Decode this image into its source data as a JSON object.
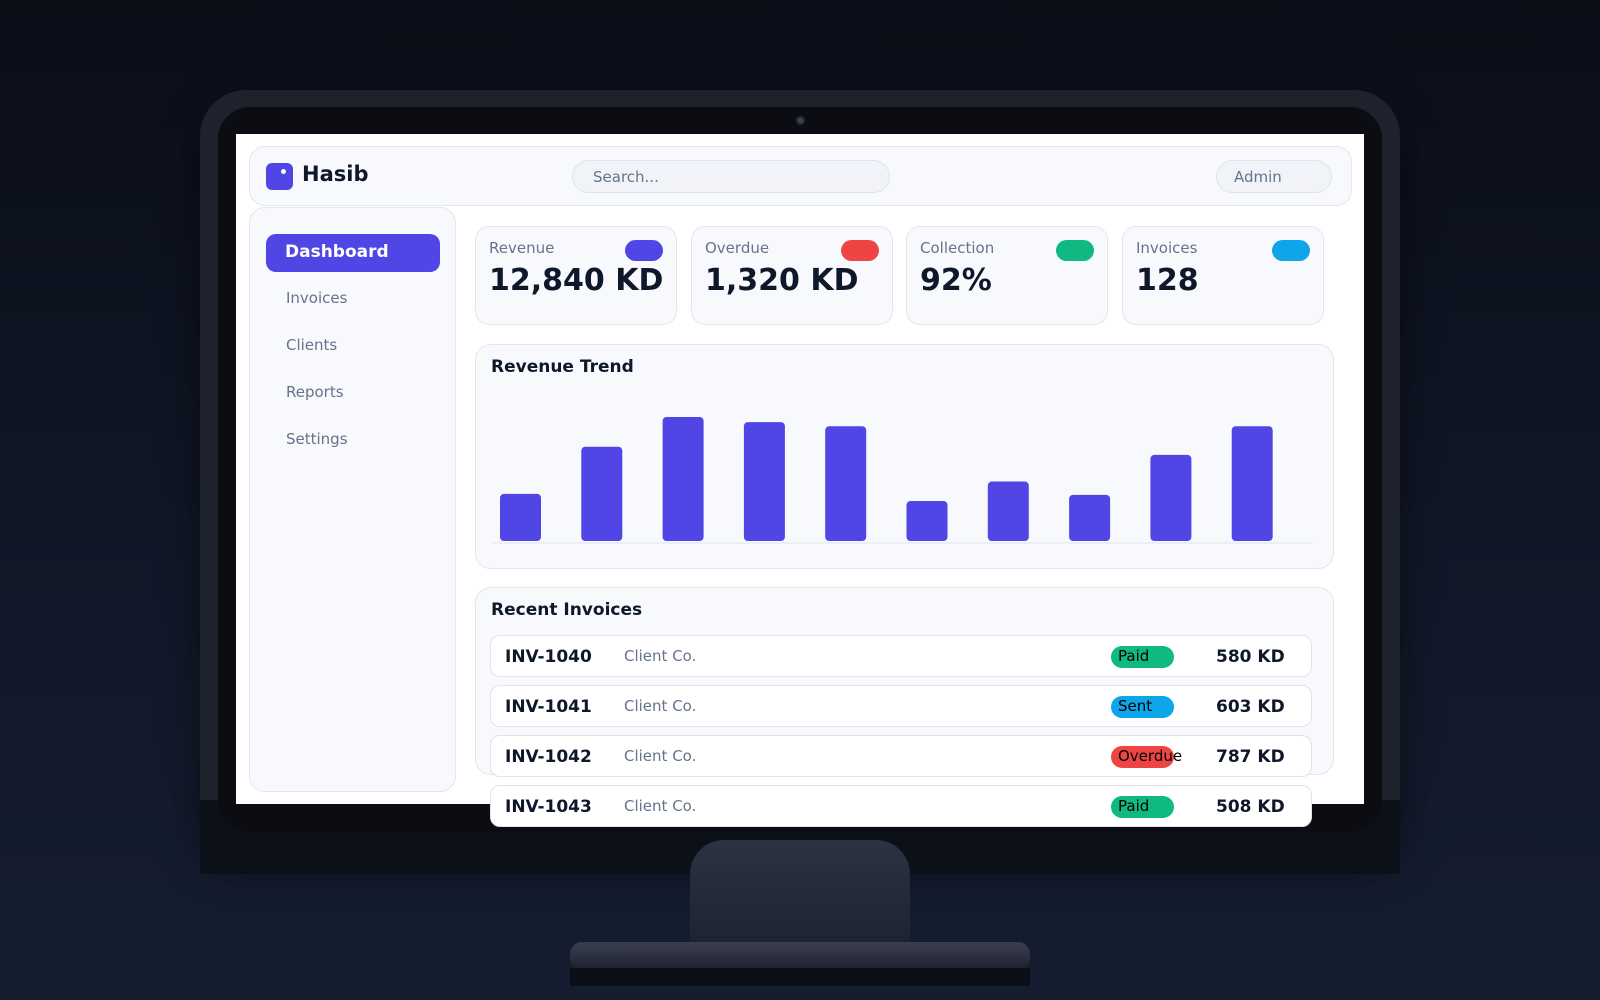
{
  "app": {
    "name": "Hasib",
    "search_placeholder": "Search...",
    "user": "Admin"
  },
  "sidebar": {
    "items": [
      {
        "label": "Dashboard",
        "active": true
      },
      {
        "label": "Invoices"
      },
      {
        "label": "Clients"
      },
      {
        "label": "Reports"
      },
      {
        "label": "Settings"
      }
    ]
  },
  "kpis": [
    {
      "label": "Revenue",
      "value": "12,840 KD",
      "color": "#4f46e5"
    },
    {
      "label": "Overdue",
      "value": "1,320 KD",
      "color": "#ef4444"
    },
    {
      "label": "Collection",
      "value": "92%",
      "color": "#10b981"
    },
    {
      "label": "Invoices",
      "value": "128",
      "color": "#0ea5e9"
    }
  ],
  "chart_data": {
    "type": "bar",
    "title": "Revenue Trend",
    "values": [
      46,
      92,
      121,
      116,
      112,
      39,
      58,
      45,
      84,
      112
    ],
    "color": "#4f46e5",
    "grid": false
  },
  "invoices": {
    "title": "Recent Invoices",
    "rows": [
      {
        "id": "INV-1040",
        "client": "Client Co.",
        "status": "Paid",
        "status_color": "#10b981",
        "amount": "580 KD"
      },
      {
        "id": "INV-1041",
        "client": "Client Co.",
        "status": "Sent",
        "status_color": "#0ea5e9",
        "amount": "603 KD"
      },
      {
        "id": "INV-1042",
        "client": "Client Co.",
        "status": "Overdue",
        "status_color": "#ef4444",
        "amount": "787 KD"
      },
      {
        "id": "INV-1043",
        "client": "Client Co.",
        "status": "Paid",
        "status_color": "#10b981",
        "amount": "508 KD"
      }
    ]
  }
}
